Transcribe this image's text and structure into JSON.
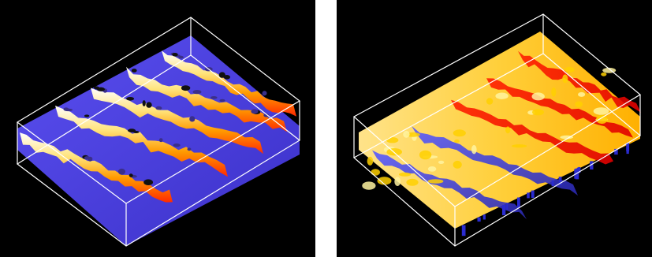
{
  "figure": {
    "panels": [
      {
        "id": "left",
        "description_color_scheme": "surface-height",
        "base_color": "#4b3fe0",
        "ridge_colors": [
          "#ff2a00",
          "#ff9a00",
          "#ffe37a",
          "#ffffff"
        ],
        "frame_color": "#ffffff"
      },
      {
        "id": "right",
        "base_color": "#3a35c8",
        "ridge_colors": [
          "#e60000",
          "#ff6a00",
          "#ffd000",
          "#fff3a0"
        ],
        "frame_color": "#ffffff"
      }
    ]
  }
}
